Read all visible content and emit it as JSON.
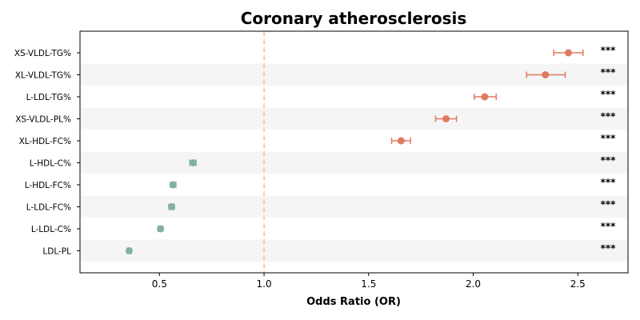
{
  "chart_data": {
    "type": "forest",
    "title": "Coronary atherosclerosis",
    "xlabel": "Odds Ratio (OR)",
    "ylabel": "",
    "xlim": [
      0.12,
      2.74
    ],
    "xticks": [
      0.5,
      1.0,
      1.5,
      2.0,
      2.5
    ],
    "xtick_labels": [
      "0.5",
      "1.0",
      "1.5",
      "2.0",
      "2.5"
    ],
    "reference_line": 1.0,
    "grid": false,
    "colors": {
      "risk": "#e07a5f",
      "protective": "#81b29a",
      "reference": "#f2c57c",
      "band": "#f5f5f5"
    },
    "rows": [
      {
        "label": "XS-VLDL-TG%",
        "or": 2.455,
        "lo": 2.385,
        "hi": 2.525,
        "sig": "***",
        "group": "risk"
      },
      {
        "label": "XL-VLDL-TG%",
        "or": 2.345,
        "lo": 2.255,
        "hi": 2.44,
        "sig": "***",
        "group": "risk"
      },
      {
        "label": "L-LDL-TG%",
        "or": 2.055,
        "lo": 2.005,
        "hi": 2.11,
        "sig": "***",
        "group": "risk"
      },
      {
        "label": "XS-VLDL-PL%",
        "or": 1.87,
        "lo": 1.82,
        "hi": 1.92,
        "sig": "***",
        "group": "risk"
      },
      {
        "label": "XL-HDL-FC%",
        "or": 1.655,
        "lo": 1.61,
        "hi": 1.7,
        "sig": "***",
        "group": "risk"
      },
      {
        "label": "L-HDL-C%",
        "or": 0.66,
        "lo": 0.645,
        "hi": 0.675,
        "sig": "***",
        "group": "protective"
      },
      {
        "label": "L-HDL-FC%",
        "or": 0.565,
        "lo": 0.552,
        "hi": 0.578,
        "sig": "***",
        "group": "protective"
      },
      {
        "label": "L-LDL-FC%",
        "or": 0.558,
        "lo": 0.545,
        "hi": 0.571,
        "sig": "***",
        "group": "protective"
      },
      {
        "label": "L-LDL-C%",
        "or": 0.505,
        "lo": 0.494,
        "hi": 0.516,
        "sig": "***",
        "group": "protective"
      },
      {
        "label": "LDL-PL",
        "or": 0.355,
        "lo": 0.345,
        "hi": 0.365,
        "sig": "***",
        "group": "protective"
      }
    ]
  }
}
